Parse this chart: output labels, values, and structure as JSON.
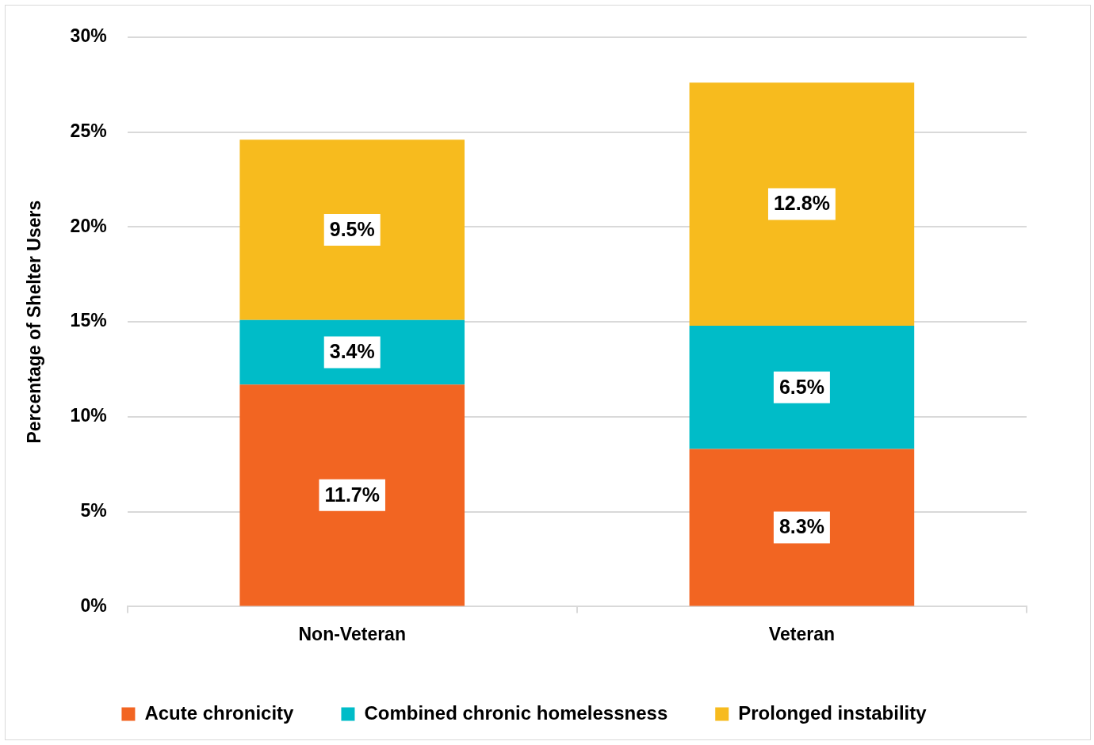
{
  "chart_data": {
    "type": "bar",
    "stacked": true,
    "ylabel": "Percentage of Shelter Users",
    "categories": [
      "Non-Veteran",
      "Veteran"
    ],
    "series": [
      {
        "name": "Acute chronicity",
        "color": "#f26522",
        "values": [
          11.7,
          8.3
        ],
        "value_labels": [
          "11.7%",
          "8.3%"
        ]
      },
      {
        "name": "Combined chronic homelessness",
        "color": "#00bcc8",
        "values": [
          3.4,
          6.5
        ],
        "value_labels": [
          "3.4%",
          "6.5%"
        ]
      },
      {
        "name": "Prolonged instability",
        "color": "#f7bb1e",
        "values": [
          9.5,
          12.8
        ],
        "value_labels": [
          "9.5%",
          "12.8%"
        ]
      }
    ],
    "ylim": [
      0,
      30
    ],
    "yticks": [
      {
        "value": 0,
        "label": "0%"
      },
      {
        "value": 5,
        "label": "5%"
      },
      {
        "value": 10,
        "label": "10%"
      },
      {
        "value": 15,
        "label": "15%"
      },
      {
        "value": 20,
        "label": "20%"
      },
      {
        "value": 25,
        "label": "25%"
      },
      {
        "value": 30,
        "label": "30%"
      }
    ],
    "grid": "y",
    "legend": "bottom"
  }
}
